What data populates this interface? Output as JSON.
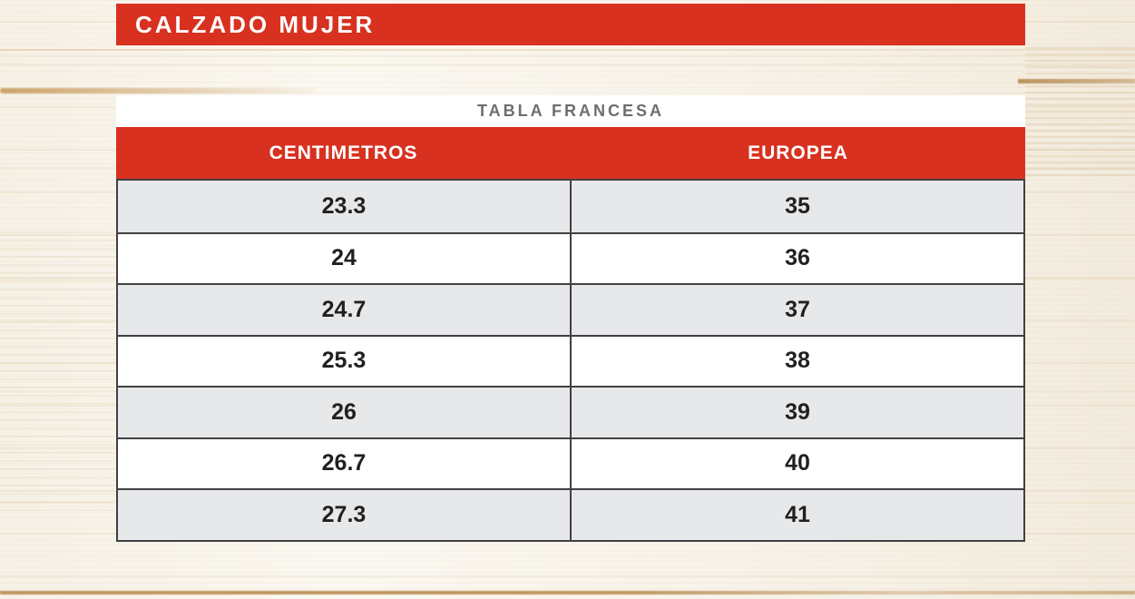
{
  "title_bar": {
    "label": "CALZADO MUJER"
  },
  "chart_data": {
    "type": "table",
    "title": "TABLA FRANCESA",
    "columns": [
      "CENTIMETROS",
      "EUROPEA"
    ],
    "rows": [
      [
        "23.3",
        "35"
      ],
      [
        "24",
        "36"
      ],
      [
        "24.7",
        "37"
      ],
      [
        "25.3",
        "38"
      ],
      [
        "26",
        "39"
      ],
      [
        "26.7",
        "40"
      ],
      [
        "27.3",
        "41"
      ]
    ]
  },
  "colors": {
    "accent_red": "#d83120",
    "row_alt_gray": "#e7e8e9",
    "table_border": "#414042",
    "table_title_gray": "#6d6e71",
    "value_text": "#231f20",
    "header_text": "#ffffff",
    "wood_base": "#f9f5ec"
  }
}
